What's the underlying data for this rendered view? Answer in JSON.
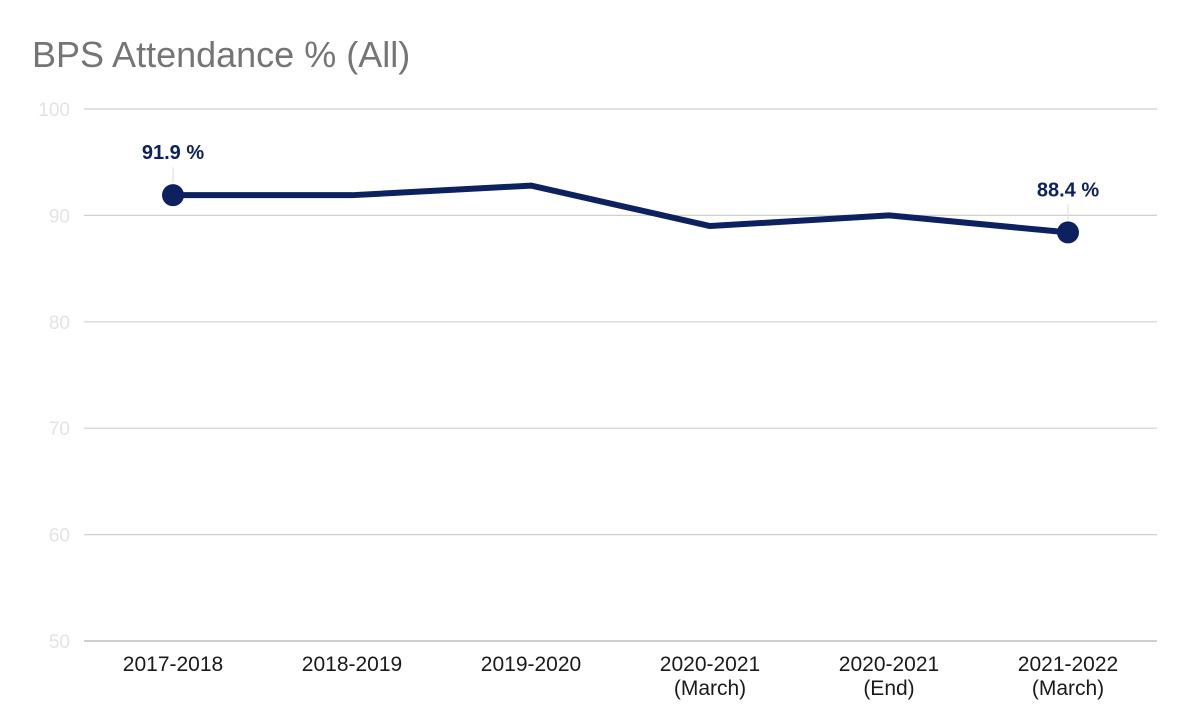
{
  "chart_data": {
    "type": "line",
    "title": "BPS Attendance % (All)",
    "xlabel": "",
    "ylabel": "",
    "categories": [
      [
        "2017-2018"
      ],
      [
        "2018-2019"
      ],
      [
        "2019-2020"
      ],
      [
        "2020-2021",
        "(March)"
      ],
      [
        "2020-2021",
        "(End)"
      ],
      [
        "2021-2022",
        "(March)"
      ]
    ],
    "series": [
      {
        "values": [
          91.9,
          91.9,
          92.8,
          89.0,
          90.0,
          88.4
        ]
      }
    ],
    "data_labels": [
      {
        "index": 0,
        "text": "91.9 %"
      },
      {
        "index": 5,
        "text": "88.4 %"
      }
    ],
    "ylim": [
      50,
      100
    ],
    "yticks": [
      50,
      60,
      70,
      80,
      90,
      100
    ],
    "grid": true,
    "legend": "none",
    "colors": {
      "line": "#0d2160",
      "grid": "#d0d0d0",
      "axis": "#bdbdbd",
      "ytick_text": "#e3e3e3",
      "title": "#757575"
    }
  }
}
